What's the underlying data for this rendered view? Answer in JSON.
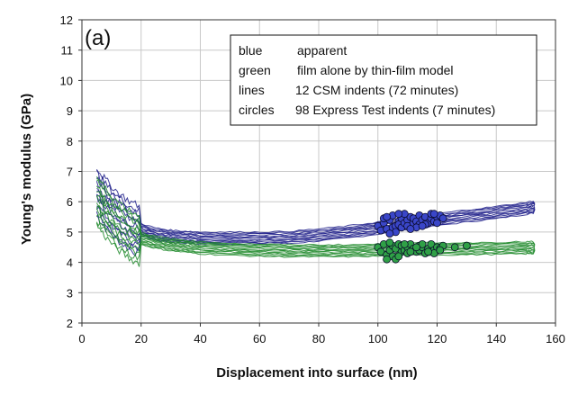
{
  "chart_data": {
    "type": "scatter",
    "panel_label": "(a)",
    "xlabel": "Displacement into surface (nm)",
    "ylabel": "Young's modulus (GPa)",
    "xlim": [
      0,
      160
    ],
    "ylim": [
      2,
      12
    ],
    "xticks": [
      0,
      20,
      40,
      60,
      80,
      100,
      120,
      140,
      160
    ],
    "yticks": [
      2,
      3,
      4,
      5,
      6,
      7,
      8,
      9,
      10,
      11,
      12
    ],
    "grid": true,
    "legend_placement": "top-right",
    "legend": [
      {
        "key": "blue",
        "key_color": "#2e2e9a",
        "text": "apparent"
      },
      {
        "key": "green",
        "key_color": "#2e9a3a",
        "text": "film alone by thin-film model"
      },
      {
        "key": "lines",
        "key_color": "#111111",
        "text": "12 CSM indents (72 minutes)"
      },
      {
        "key": "circles",
        "key_color": "#111111",
        "text": "98 Express Test indents (7 minutes)"
      }
    ],
    "colors": {
      "apparent": "#1f1f8a",
      "film": "#1e8a2a",
      "apparent_marker": "#3a46c8",
      "film_marker": "#2fa046"
    },
    "series": [
      {
        "name": "apparent",
        "kind": "lines",
        "count": 12,
        "x": [
          5,
          8,
          12,
          16,
          20,
          25,
          30,
          35,
          40,
          50,
          60,
          70,
          80,
          90,
          100,
          110,
          120,
          130,
          140,
          150,
          153
        ],
        "y": [
          6.4,
          6.0,
          5.6,
          5.3,
          5.1,
          4.95,
          4.88,
          4.85,
          4.82,
          4.82,
          4.82,
          4.84,
          4.92,
          5.02,
          5.15,
          5.3,
          5.42,
          5.55,
          5.66,
          5.8,
          5.85
        ]
      },
      {
        "name": "film alone by thin-film model",
        "kind": "lines",
        "count": 12,
        "x": [
          5,
          8,
          12,
          16,
          20,
          25,
          30,
          35,
          40,
          50,
          60,
          70,
          80,
          90,
          100,
          110,
          120,
          130,
          140,
          150,
          153
        ],
        "y": [
          6.1,
          5.7,
          5.3,
          5.0,
          4.8,
          4.68,
          4.6,
          4.55,
          4.5,
          4.45,
          4.42,
          4.4,
          4.4,
          4.4,
          4.42,
          4.45,
          4.46,
          4.47,
          4.48,
          4.5,
          4.5
        ]
      },
      {
        "name": "apparent",
        "kind": "circles",
        "x": [
          100,
          101,
          102,
          103,
          104,
          105,
          105,
          106,
          106,
          107,
          107,
          108,
          108,
          109,
          110,
          110,
          111,
          112,
          112,
          113,
          114,
          114,
          115,
          116,
          117,
          118,
          118,
          119,
          120,
          121,
          122,
          104,
          102,
          109,
          113,
          116,
          120,
          107,
          111,
          115,
          119,
          103
        ],
        "y": [
          5.2,
          5.05,
          5.3,
          5.1,
          5.4,
          5.15,
          5.55,
          5.2,
          5.0,
          5.35,
          5.25,
          5.45,
          5.15,
          5.3,
          5.4,
          5.2,
          5.5,
          5.3,
          5.45,
          5.35,
          5.25,
          5.55,
          5.4,
          5.5,
          5.3,
          5.45,
          5.6,
          5.35,
          5.5,
          5.55,
          5.45,
          4.95,
          5.45,
          5.6,
          5.15,
          5.25,
          5.3,
          5.6,
          5.1,
          5.2,
          5.6,
          5.5
        ]
      },
      {
        "name": "film alone by thin-film model",
        "kind": "circles",
        "x": [
          100,
          101,
          102,
          103,
          104,
          105,
          105,
          106,
          106,
          107,
          108,
          108,
          109,
          110,
          110,
          111,
          112,
          113,
          114,
          114,
          115,
          116,
          117,
          118,
          119,
          120,
          121,
          122,
          126,
          130,
          104,
          107,
          111,
          115,
          119,
          103,
          109,
          113,
          117,
          121
        ],
        "y": [
          4.5,
          4.35,
          4.6,
          4.25,
          4.4,
          4.55,
          4.2,
          4.45,
          4.1,
          4.6,
          4.35,
          4.55,
          4.4,
          4.5,
          4.3,
          4.6,
          4.45,
          4.35,
          4.55,
          4.4,
          4.5,
          4.3,
          4.45,
          4.6,
          4.4,
          4.5,
          4.45,
          4.55,
          4.5,
          4.55,
          4.65,
          4.2,
          4.35,
          4.6,
          4.3,
          4.1,
          4.6,
          4.5,
          4.35,
          4.4
        ]
      }
    ]
  }
}
